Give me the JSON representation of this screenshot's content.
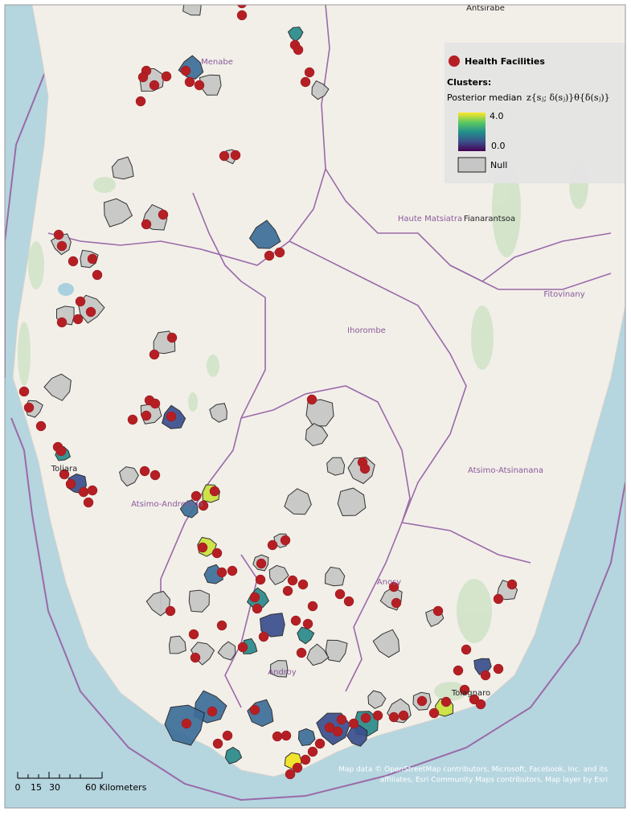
{
  "map": {
    "places": {
      "antsirabe": "Antsirabe",
      "fianarantsoa": "Fianarantsoa",
      "toliara": "Toliara",
      "tolagnaro": "Tolagnaro"
    },
    "regions": {
      "menabe": "Menabe",
      "haute_matsiatra": "Haute Matsiatra",
      "fitovinany": "Fitovinany",
      "ihorombe": "Ihorombe",
      "atsimo_atsinanana": "Atsimo-Atsinanana",
      "atsimo_andrefana": "Atsimo-Andrefana",
      "anosy": "Anosy",
      "androy": "Androy"
    }
  },
  "legend": {
    "health_facilities": "Health Facilities",
    "clusters": "Clusters:",
    "posterior_median": "Posterior median",
    "formula": "z{sⱼ; δ(sⱼ)}θ{δ(sⱼ)}",
    "max": "4.0",
    "min": "0.0",
    "null": "Null"
  },
  "scale_bar": {
    "labels": [
      "0",
      "15",
      "30",
      "60 Kilometers"
    ]
  },
  "attribution": [
    "Map data © OpenStreetMap contributors, Microsoft, Facebook, Inc. and its",
    "affiliates, Esri Community Maps contributors, Map layer by Esri"
  ]
}
